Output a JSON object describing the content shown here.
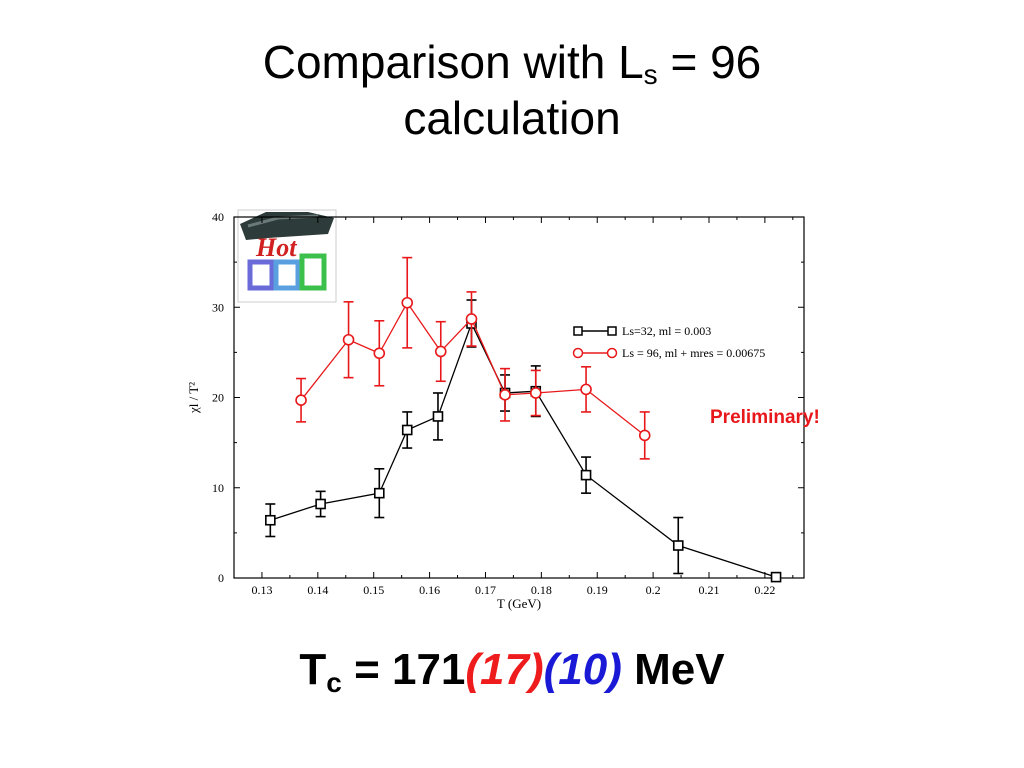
{
  "slide": {
    "title_pre": "Comparison with L",
    "title_sub": "s",
    "title_post": " = 96",
    "title_line2": "calculation",
    "tc_pre": "T",
    "tc_sub": "c",
    "tc_eq": " = 171",
    "tc_err1": "(17)",
    "tc_err2": "(10)",
    "tc_unit": " MeV",
    "preliminary": "Preliminary!"
  },
  "chart_data": {
    "type": "scatter",
    "xlabel": "T (GeV)",
    "ylabel": "χl / T²",
    "xlim": [
      0.125,
      0.227
    ],
    "ylim": [
      0,
      40
    ],
    "xticks": [
      "0.13",
      "0.14",
      "0.15",
      "0.16",
      "0.17",
      "0.18",
      "0.19",
      "0.2",
      "0.21",
      "0.22"
    ],
    "yticks": [
      "0",
      "10",
      "20",
      "30",
      "40"
    ],
    "series": [
      {
        "name": "Ls=32, ml = 0.003",
        "color": "#000000",
        "marker": "square",
        "x": [
          0.1315,
          0.1405,
          0.151,
          0.156,
          0.1615,
          0.1675,
          0.1735,
          0.179,
          0.188,
          0.2045,
          0.222
        ],
        "y": [
          6.4,
          8.2,
          9.4,
          16.4,
          17.9,
          28.2,
          20.5,
          20.7,
          11.4,
          3.6,
          0.1
        ],
        "err": [
          1.8,
          1.4,
          2.7,
          2.0,
          2.6,
          2.6,
          2.0,
          2.8,
          2.0,
          3.1,
          0
        ]
      },
      {
        "name": "Ls = 96, ml + mres = 0.00675",
        "color": "#e8181a",
        "marker": "circle",
        "x": [
          0.137,
          0.1455,
          0.151,
          0.156,
          0.162,
          0.1675,
          0.1735,
          0.179,
          0.188,
          0.1985
        ],
        "y": [
          19.7,
          26.4,
          24.9,
          30.5,
          25.1,
          28.7,
          20.3,
          20.5,
          20.9,
          15.8
        ],
        "err": [
          2.4,
          4.2,
          3.6,
          5.0,
          3.3,
          3.0,
          2.9,
          2.5,
          2.5,
          2.6
        ]
      }
    ],
    "legend": "center-right",
    "annotations": [
      "Preliminary!"
    ]
  }
}
